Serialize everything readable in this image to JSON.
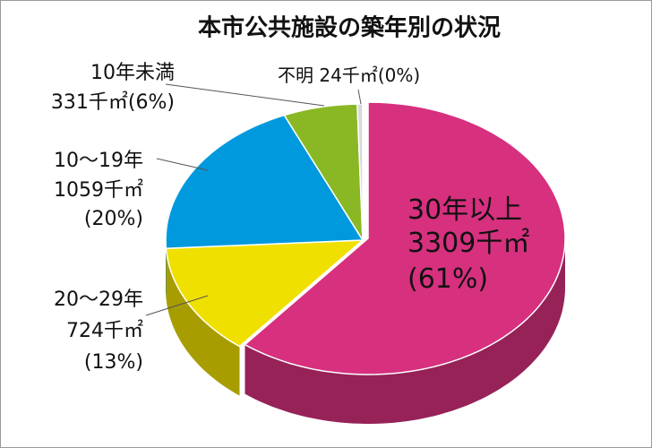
{
  "chart_data": {
    "type": "pie",
    "title": "本市公共施設の築年別の状況",
    "categories": [
      "30年以上",
      "20〜29年",
      "10〜19年",
      "10年未満",
      "不明"
    ],
    "values": [
      3309,
      724,
      1059,
      331,
      24
    ],
    "value_labels": [
      "3309千㎡",
      "724千㎡",
      "1059千㎡",
      "331千㎡",
      "24千㎡"
    ],
    "percent_labels": [
      "(61%)",
      "(13%)",
      "(20%)",
      "(6%)",
      "(0%)"
    ],
    "colors": [
      "#d6307e",
      "#f0e000",
      "#0099dd",
      "#8ab825",
      "#d8d8d8"
    ],
    "start_angle": 0,
    "direction": "clockwise"
  }
}
